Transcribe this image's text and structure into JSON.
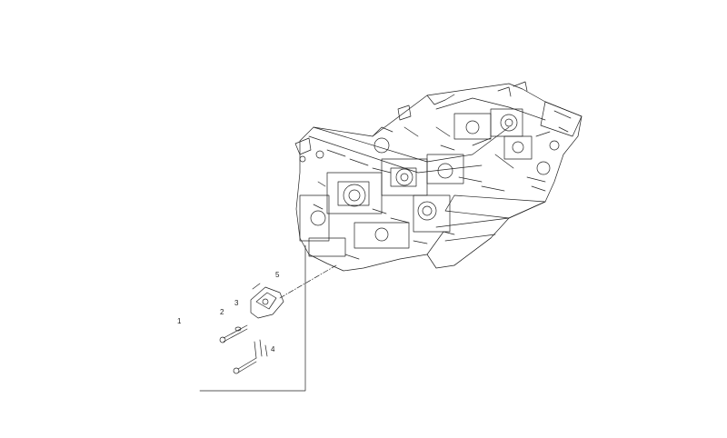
{
  "diagram": {
    "type": "exploded parts diagram",
    "callouts": [
      {
        "id": "c1",
        "label": "1"
      },
      {
        "id": "c2",
        "label": "2"
      },
      {
        "id": "c3",
        "label": "3"
      },
      {
        "id": "c4",
        "label": "4"
      },
      {
        "id": "c5",
        "label": "5"
      }
    ],
    "line_color": "#222222"
  }
}
